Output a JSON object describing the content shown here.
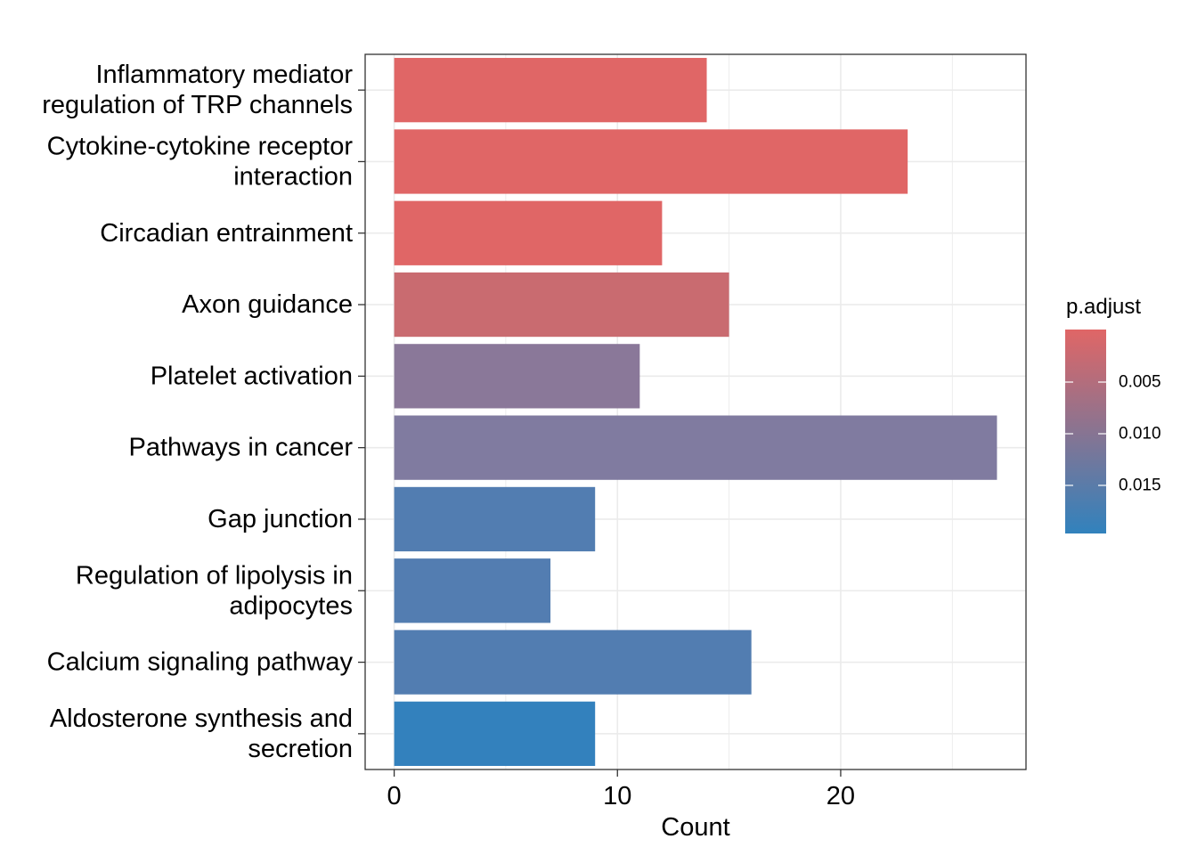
{
  "chart_data": {
    "type": "bar",
    "orientation": "horizontal",
    "xlabel": "Count",
    "ylabel": "",
    "xlim": [
      -1.3,
      28.3
    ],
    "x_ticks": [
      0,
      10,
      20
    ],
    "grid": true,
    "categories": [
      [
        "Inflammatory mediator",
        "regulation of TRP channels"
      ],
      [
        "Cytokine-cytokine receptor",
        "interaction"
      ],
      [
        "Circadian entrainment"
      ],
      [
        "Axon guidance"
      ],
      [
        "Platelet activation"
      ],
      [
        "Pathways in cancer"
      ],
      [
        "Gap junction"
      ],
      [
        "Regulation of lipolysis in",
        "adipocytes"
      ],
      [
        "Calcium signaling pathway"
      ],
      [
        "Aldosterone synthesis and",
        "secretion"
      ]
    ],
    "values": [
      14,
      23,
      12,
      15,
      11,
      27,
      9,
      7,
      16,
      9
    ],
    "bar_colors": [
      "#E06666",
      "#E06666",
      "#E06666",
      "#C96B70",
      "#8A7899",
      "#807BA0",
      "#527DB1",
      "#537DB1",
      "#527DB1",
      "#3381BD"
    ],
    "legend": {
      "title": "p.adjust",
      "placement": "right",
      "ticks": [
        "0.005",
        "0.010",
        "0.015"
      ],
      "color_low": "#E06666",
      "color_high": "#3182BD"
    }
  }
}
